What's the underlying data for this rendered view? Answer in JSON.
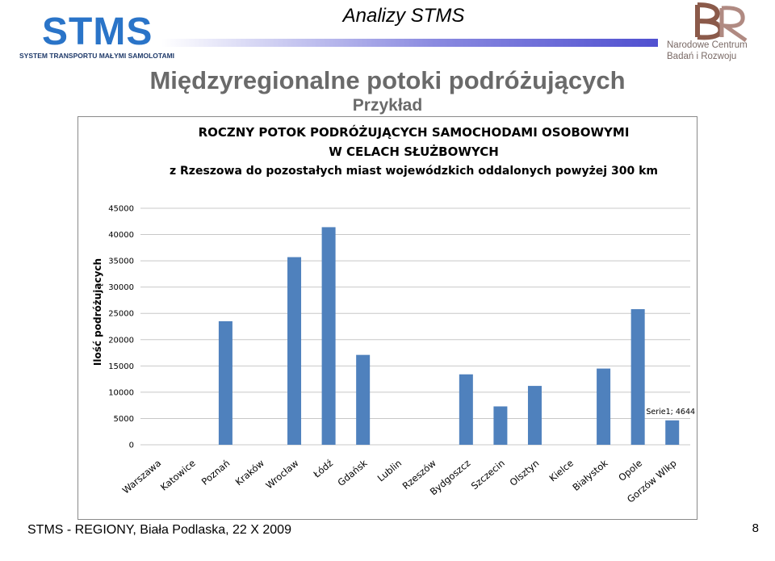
{
  "header": {
    "logo_left": {
      "name": "STMS",
      "tagline": "SYSTEM TRANSPORTU MAŁYMI SAMOLOTAMI"
    },
    "title": "Analizy STMS",
    "logo_right": {
      "line1": "Narodowe Centrum",
      "line2": "Badań i Rozwoju"
    }
  },
  "slide": {
    "title": "Międzyregionalne potoki podróżujących",
    "subtitle": "Przykład"
  },
  "footer": {
    "text": "STMS - REGIONY, Biała Podlaska, 22 X 2009",
    "page": "8"
  },
  "colors": {
    "bar": "#4f81bd",
    "grid": "#c8c8c8",
    "title_gray": "#6a6a6a"
  },
  "chart_data": {
    "type": "bar",
    "title_lines": [
      "ROCZNY  POTOK PODRÓŻUJĄCYCH SAMOCHODAMI OSOBOWYMI",
      "W CELACH SŁUŻBOWYCH",
      "z Rzeszowa do pozostałych miast wojewódzkich oddalonych powyżej 300 km"
    ],
    "ylabel": "Ilość podróżujących",
    "xlabel": "",
    "ylim": [
      0,
      45000
    ],
    "yticks": [
      "0",
      "5000",
      "10000",
      "15000",
      "20000",
      "25000",
      "30000",
      "35000",
      "40000",
      "45000"
    ],
    "grid": true,
    "categories": [
      "Warszawa",
      "Katowice",
      "Poznań",
      "Kraków",
      "Wrocław",
      "Łódź",
      "Gdańsk",
      "Lublin",
      "Rzeszów",
      "Bydgoszcz",
      "Szczecin",
      "Olsztyn",
      "Kielce",
      "Białystok",
      "Opole",
      "Gorzów Wlkp"
    ],
    "values": [
      0,
      0,
      23500,
      0,
      35700,
      41400,
      17100,
      0,
      0,
      13400,
      7300,
      11200,
      0,
      14500,
      25800,
      4644
    ],
    "annotations": [
      {
        "category": "Gorzów Wlkp",
        "text": "Serie1; 4644"
      }
    ]
  }
}
